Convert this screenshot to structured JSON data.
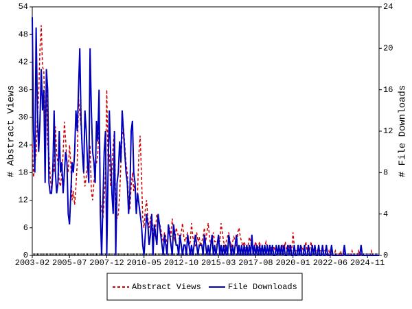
{
  "chart_data": {
    "type": "line",
    "y_label": "# Abstract Views",
    "y2_label": "# File Downloads",
    "x": [
      "2003-02",
      "2003-03",
      "2003-04",
      "2003-05",
      "2003-06",
      "2003-07",
      "2003-08",
      "2003-09",
      "2003-10",
      "2003-11",
      "2003-12",
      "2004-01",
      "2004-02",
      "2004-03",
      "2004-04",
      "2004-05",
      "2004-06",
      "2004-07",
      "2004-08",
      "2004-09",
      "2004-10",
      "2004-11",
      "2004-12",
      "2005-01",
      "2005-02",
      "2005-03",
      "2005-04",
      "2005-05",
      "2005-06",
      "2005-07",
      "2005-08",
      "2005-09",
      "2005-10",
      "2005-11",
      "2005-12",
      "2006-01",
      "2006-02",
      "2006-03",
      "2006-04",
      "2006-05",
      "2006-06",
      "2006-07",
      "2006-08",
      "2006-09",
      "2006-10",
      "2006-11",
      "2006-12",
      "2007-01",
      "2007-02",
      "2007-03",
      "2007-04",
      "2007-05",
      "2007-06",
      "2007-07",
      "2007-08",
      "2007-09",
      "2007-10",
      "2007-11",
      "2007-12",
      "2008-01",
      "2008-02",
      "2008-03",
      "2008-04",
      "2008-05",
      "2008-06",
      "2008-07",
      "2008-08",
      "2008-09",
      "2008-10",
      "2008-11",
      "2008-12",
      "2009-01",
      "2009-02",
      "2009-03",
      "2009-04",
      "2009-05",
      "2009-06",
      "2009-07",
      "2009-08",
      "2009-09",
      "2009-10",
      "2009-11",
      "2009-12",
      "2010-01",
      "2010-02",
      "2010-03",
      "2010-04",
      "2010-05",
      "2010-06",
      "2010-07",
      "2010-08",
      "2010-09",
      "2010-10",
      "2010-11",
      "2010-12",
      "2011-01",
      "2011-02",
      "2011-03",
      "2011-04",
      "2011-05",
      "2011-06",
      "2011-07",
      "2011-08",
      "2011-09",
      "2011-10",
      "2011-11",
      "2011-12",
      "2012-01",
      "2012-02",
      "2012-03",
      "2012-04",
      "2012-05",
      "2012-06",
      "2012-07",
      "2012-08",
      "2012-09",
      "2012-10",
      "2012-11",
      "2012-12",
      "2013-01",
      "2013-02",
      "2013-03",
      "2013-04",
      "2013-05",
      "2013-06",
      "2013-07",
      "2013-08",
      "2013-09",
      "2013-10",
      "2013-11",
      "2013-12",
      "2014-01",
      "2014-02",
      "2014-03",
      "2014-04",
      "2014-05",
      "2014-06",
      "2014-07",
      "2014-08",
      "2014-09",
      "2014-10",
      "2014-11",
      "2014-12",
      "2015-01",
      "2015-02",
      "2015-03",
      "2015-04",
      "2015-05",
      "2015-06",
      "2015-07",
      "2015-08",
      "2015-09",
      "2015-10",
      "2015-11",
      "2015-12",
      "2016-01",
      "2016-02",
      "2016-03",
      "2016-04",
      "2016-05",
      "2016-06",
      "2016-07",
      "2016-08",
      "2016-09",
      "2016-10",
      "2016-11",
      "2016-12",
      "2017-01",
      "2017-02",
      "2017-03",
      "2017-04",
      "2017-05",
      "2017-06",
      "2017-07",
      "2017-08",
      "2017-09",
      "2017-10",
      "2017-11",
      "2017-12",
      "2018-01",
      "2018-02",
      "2018-03",
      "2018-04",
      "2018-05",
      "2018-06",
      "2018-07",
      "2018-08",
      "2018-09",
      "2018-10",
      "2018-11",
      "2018-12",
      "2019-01",
      "2019-02",
      "2019-03",
      "2019-04",
      "2019-05",
      "2019-06",
      "2019-07",
      "2019-08",
      "2019-09",
      "2019-10",
      "2019-11",
      "2019-12",
      "2020-01",
      "2020-02",
      "2020-03",
      "2020-04",
      "2020-05",
      "2020-06",
      "2020-07",
      "2020-08",
      "2020-09",
      "2020-10",
      "2020-11",
      "2020-12",
      "2021-01",
      "2021-02",
      "2021-03",
      "2021-04",
      "2021-05",
      "2021-06",
      "2021-07",
      "2021-08",
      "2021-09",
      "2021-10",
      "2021-11",
      "2021-12",
      "2022-01",
      "2022-02",
      "2022-03",
      "2022-04",
      "2022-05",
      "2022-06",
      "2022-07",
      "2022-08",
      "2022-09",
      "2022-10",
      "2022-11",
      "2022-12",
      "2023-01",
      "2023-02",
      "2023-03",
      "2023-04",
      "2023-05",
      "2023-06",
      "2023-07",
      "2023-08",
      "2023-09",
      "2023-10",
      "2023-11",
      "2023-12",
      "2024-01",
      "2024-02",
      "2024-03",
      "2024-04",
      "2024-05",
      "2024-06",
      "2024-07",
      "2024-08",
      "2024-09",
      "2024-10",
      "2024-11",
      "2024-12",
      "2025-01",
      "2025-02",
      "2025-03",
      "2025-04",
      "2025-05",
      "2025-06",
      "2025-07",
      "2025-08"
    ],
    "xticks": [
      "2003-02",
      "2005-07",
      "2007-12",
      "2010-05",
      "2012-10",
      "2015-03",
      "2017-08",
      "2020-01",
      "2022-06",
      "2024-11"
    ],
    "ylim": [
      0,
      54
    ],
    "yticks": [
      0,
      6,
      12,
      18,
      24,
      30,
      36,
      42,
      48,
      54
    ],
    "y2lim": [
      0,
      24
    ],
    "y2ticks": [
      0,
      4,
      8,
      12,
      16,
      20,
      24
    ],
    "series": [
      {
        "name": "Abstract Views",
        "color": "#cc0000",
        "dashed": true,
        "values": [
          24,
          17,
          20,
          22,
          30,
          35,
          45,
          50,
          41,
          40,
          28,
          38,
          24,
          22,
          17,
          14,
          20,
          18,
          28,
          22,
          20,
          16,
          15,
          18,
          22,
          29,
          25,
          20,
          18,
          24,
          20,
          12,
          14,
          11,
          15,
          20,
          34,
          31,
          28,
          22,
          18,
          15,
          17,
          20,
          18,
          24,
          14,
          12,
          16,
          19,
          20,
          22,
          28,
          12,
          10,
          8,
          12,
          18,
          36,
          20,
          22,
          15,
          18,
          24,
          27,
          10,
          8,
          9,
          13,
          20,
          26,
          28,
          24,
          20,
          18,
          12,
          10,
          15,
          18,
          14,
          16,
          9,
          14,
          22,
          26,
          18,
          8,
          6,
          10,
          12,
          8,
          6,
          8,
          9,
          5,
          4,
          6,
          9,
          8,
          7,
          6,
          4,
          3,
          5,
          4,
          2,
          5,
          6,
          4,
          8,
          5,
          3,
          6,
          5,
          4,
          3,
          5,
          7,
          4,
          3,
          4,
          5,
          2,
          3,
          7,
          4,
          3,
          2,
          5,
          3,
          4,
          2,
          3,
          4,
          6,
          3,
          5,
          7,
          4,
          2,
          3,
          5,
          3,
          3,
          2,
          4,
          3,
          7,
          5,
          3,
          2,
          3,
          4,
          5,
          3,
          2,
          3,
          4,
          3,
          2,
          5,
          6,
          4,
          3,
          2,
          3,
          2,
          1,
          2,
          4,
          3,
          2,
          1,
          2,
          3,
          1,
          2,
          3,
          1,
          2,
          1,
          2,
          3,
          2,
          1,
          1,
          2,
          1,
          2,
          1,
          2,
          1,
          2,
          1,
          1,
          2,
          1,
          3,
          1,
          1,
          2,
          1,
          1,
          5,
          2,
          1,
          1,
          2,
          1,
          1,
          2,
          1,
          1,
          3,
          1,
          2,
          1,
          3,
          1,
          1,
          2,
          1,
          1,
          2,
          1,
          1,
          1,
          1,
          1,
          2,
          0,
          1,
          0,
          1,
          0,
          0,
          1,
          0,
          0,
          0,
          1,
          0,
          0,
          1,
          0,
          0,
          0,
          0,
          0,
          1,
          0,
          0,
          0,
          0,
          1,
          0,
          0,
          0,
          0,
          0,
          0,
          0,
          0,
          0,
          1,
          0,
          0,
          0,
          0,
          0,
          0
        ]
      },
      {
        "name": "File Downloads",
        "color": "#0000bb",
        "dashed": false,
        "axis": "y2",
        "values": [
          23,
          12,
          8,
          22,
          14,
          10,
          13,
          18,
          14,
          16,
          7,
          18,
          16,
          7,
          6,
          6,
          8,
          14,
          8,
          6,
          7,
          12,
          8,
          9,
          6,
          8,
          10,
          9,
          4,
          3,
          6,
          9,
          8,
          10,
          14,
          12,
          16,
          20,
          13,
          10,
          8,
          14,
          12,
          9,
          7,
          20,
          14,
          10,
          9,
          7,
          13,
          11,
          16,
          4,
          0,
          5,
          10,
          12,
          0,
          8,
          14,
          10,
          6,
          4,
          12,
          0,
          7,
          8,
          11,
          9,
          14,
          12,
          10,
          8,
          7,
          4,
          6,
          12,
          13,
          8,
          7,
          4,
          6,
          5,
          4,
          3,
          1,
          0,
          2,
          4,
          3,
          1,
          2,
          4,
          0,
          3,
          2,
          1,
          4,
          3,
          2,
          1,
          0,
          2,
          1,
          0,
          3,
          2,
          1,
          0,
          3,
          2,
          1,
          1,
          0,
          2,
          1,
          0,
          1,
          1,
          0,
          2,
          1,
          0,
          1,
          0,
          1,
          2,
          1,
          0,
          1,
          1,
          1,
          0,
          2,
          1,
          0,
          1,
          0,
          1,
          2,
          0,
          1,
          0,
          1,
          2,
          0,
          1,
          0,
          1,
          0,
          1,
          0,
          2,
          1,
          0,
          1,
          0,
          1,
          2,
          0,
          1,
          0,
          1,
          0,
          1,
          0,
          1,
          0,
          1,
          0,
          2,
          0,
          1,
          0,
          1,
          0,
          1,
          0,
          1,
          0,
          1,
          0,
          1,
          0,
          1,
          0,
          1,
          0,
          0,
          1,
          0,
          1,
          0,
          1,
          0,
          1,
          0,
          0,
          1,
          0,
          1,
          0,
          0,
          1,
          0,
          0,
          1,
          0,
          1,
          0,
          0,
          1,
          0,
          0,
          1,
          0,
          0,
          1,
          0,
          1,
          0,
          0,
          1,
          0,
          0,
          1,
          0,
          0,
          1,
          0,
          0,
          0,
          1,
          0,
          0,
          0,
          0,
          0,
          0,
          0,
          0,
          0,
          1,
          0,
          0,
          0,
          0,
          0,
          0,
          0,
          0,
          0,
          0,
          0,
          0,
          1,
          0,
          0,
          0,
          0,
          0,
          0,
          0,
          0,
          0,
          0,
          0,
          0,
          0,
          0
        ]
      }
    ]
  }
}
